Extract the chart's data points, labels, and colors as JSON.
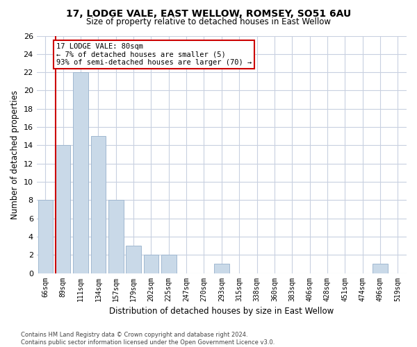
{
  "title1": "17, LODGE VALE, EAST WELLOW, ROMSEY, SO51 6AU",
  "title2": "Size of property relative to detached houses in East Wellow",
  "xlabel": "Distribution of detached houses by size in East Wellow",
  "ylabel": "Number of detached properties",
  "footnote": "Contains HM Land Registry data © Crown copyright and database right 2024.\nContains public sector information licensed under the Open Government Licence v3.0.",
  "categories": [
    "66sqm",
    "89sqm",
    "111sqm",
    "134sqm",
    "157sqm",
    "179sqm",
    "202sqm",
    "225sqm",
    "247sqm",
    "270sqm",
    "293sqm",
    "315sqm",
    "338sqm",
    "360sqm",
    "383sqm",
    "406sqm",
    "428sqm",
    "451sqm",
    "474sqm",
    "496sqm",
    "519sqm"
  ],
  "values": [
    8,
    14,
    22,
    15,
    8,
    3,
    2,
    2,
    0,
    0,
    1,
    0,
    0,
    0,
    0,
    0,
    0,
    0,
    0,
    1,
    0
  ],
  "bar_color": "#c9d9e8",
  "bar_edge_color": "#a0b8d0",
  "highlight_line_color": "#cc0000",
  "annotation_text": "17 LODGE VALE: 80sqm\n← 7% of detached houses are smaller (5)\n93% of semi-detached houses are larger (70) →",
  "annotation_box_color": "#ffffff",
  "annotation_box_edge_color": "#cc0000",
  "ylim": [
    0,
    26
  ],
  "yticks": [
    0,
    2,
    4,
    6,
    8,
    10,
    12,
    14,
    16,
    18,
    20,
    22,
    24,
    26
  ],
  "grid_color": "#c8d0e0",
  "background_color": "#ffffff"
}
